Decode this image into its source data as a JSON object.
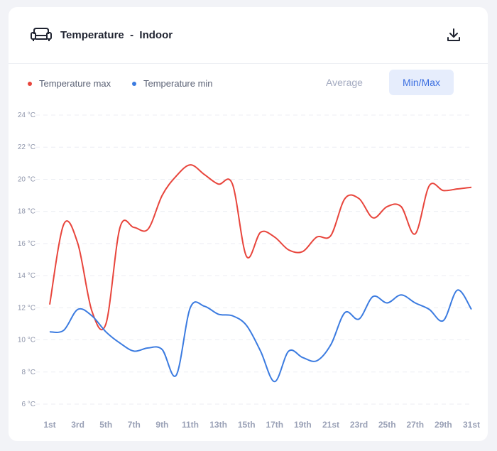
{
  "header": {
    "title": "Temperature  -  Indoor",
    "icon": "sofa-icon",
    "download_icon": "download-icon"
  },
  "toggle": {
    "options": [
      "Average",
      "Min/Max"
    ],
    "selected": "Min/Max"
  },
  "chart_data": {
    "type": "line",
    "title": "",
    "xlabel": "",
    "ylabel": "",
    "ylim": [
      6,
      24
    ],
    "y_ticks": [
      "24 °C",
      "22 °C",
      "20 °C",
      "18 °C",
      "16 °C",
      "14 °C",
      "12 °C",
      "10 °C",
      "8 °C",
      "6 °C"
    ],
    "x_tick_labels": [
      "1st",
      "3rd",
      "5th",
      "7th",
      "9th",
      "11th",
      "13th",
      "15th",
      "17th",
      "19th",
      "21st",
      "23rd",
      "25th",
      "27th",
      "29th",
      "31st"
    ],
    "x": [
      1,
      2,
      3,
      4,
      5,
      6,
      7,
      8,
      9,
      10,
      11,
      12,
      13,
      14,
      15,
      16,
      17,
      18,
      19,
      20,
      21,
      22,
      23,
      24,
      25,
      26,
      27,
      28,
      29,
      30,
      31
    ],
    "grid": true,
    "legend": "top-left",
    "colors": {
      "max": "#e8453c",
      "min": "#3b7be0"
    },
    "series": [
      {
        "name": "Temperature max",
        "values": [
          12.2,
          17.2,
          16.0,
          11.8,
          11.0,
          17.0,
          17.0,
          16.9,
          19.0,
          20.2,
          20.9,
          20.3,
          19.7,
          19.7,
          15.2,
          16.7,
          16.4,
          15.6,
          15.5,
          16.4,
          16.5,
          18.8,
          18.8,
          17.6,
          18.3,
          18.3,
          16.6,
          19.6,
          19.3,
          19.4,
          19.5
        ]
      },
      {
        "name": "Temperature min",
        "values": [
          10.5,
          10.6,
          11.9,
          11.5,
          10.5,
          9.8,
          9.3,
          9.5,
          9.4,
          7.8,
          12.0,
          12.1,
          11.6,
          11.5,
          10.9,
          9.3,
          7.4,
          9.3,
          8.9,
          8.7,
          9.7,
          11.7,
          11.3,
          12.7,
          12.3,
          12.8,
          12.3,
          11.9,
          11.2,
          13.1,
          11.9
        ]
      }
    ]
  }
}
